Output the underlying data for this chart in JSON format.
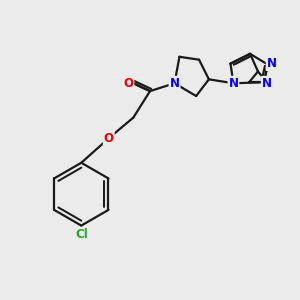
{
  "bg_color": "#ebebeb",
  "bond_color": "#1a1a1a",
  "bond_width": 1.6,
  "atom_colors": {
    "N": "#0000ee",
    "O": "#ee0000",
    "Cl": "#22aa22",
    "C": "#1a1a1a"
  },
  "font_size_atom": 8.5,
  "fig_size": [
    3.0,
    3.0
  ],
  "dpi": 100
}
